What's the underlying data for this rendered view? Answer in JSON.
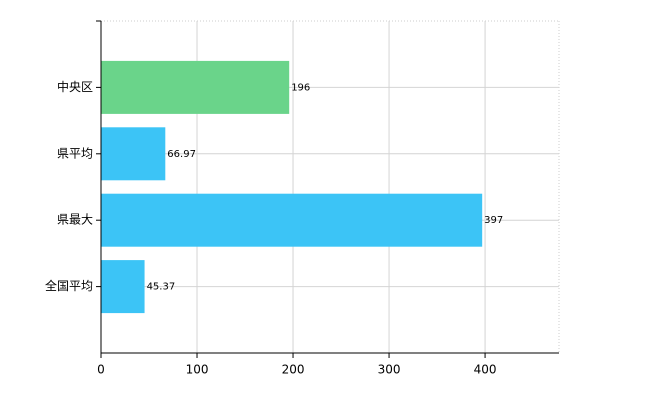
{
  "chart_data": {
    "type": "hbar",
    "categories": [
      "中央区",
      "県平均",
      "県最大",
      "全国平均"
    ],
    "values": [
      196,
      66.97,
      397,
      45.37
    ],
    "colors": [
      "#6ad48a",
      "#3cc4f6",
      "#3cc4f6",
      "#3cc4f6"
    ],
    "xlim": [
      0,
      477
    ],
    "xticks": [
      0,
      100,
      200,
      300,
      400
    ],
    "grid": true
  }
}
